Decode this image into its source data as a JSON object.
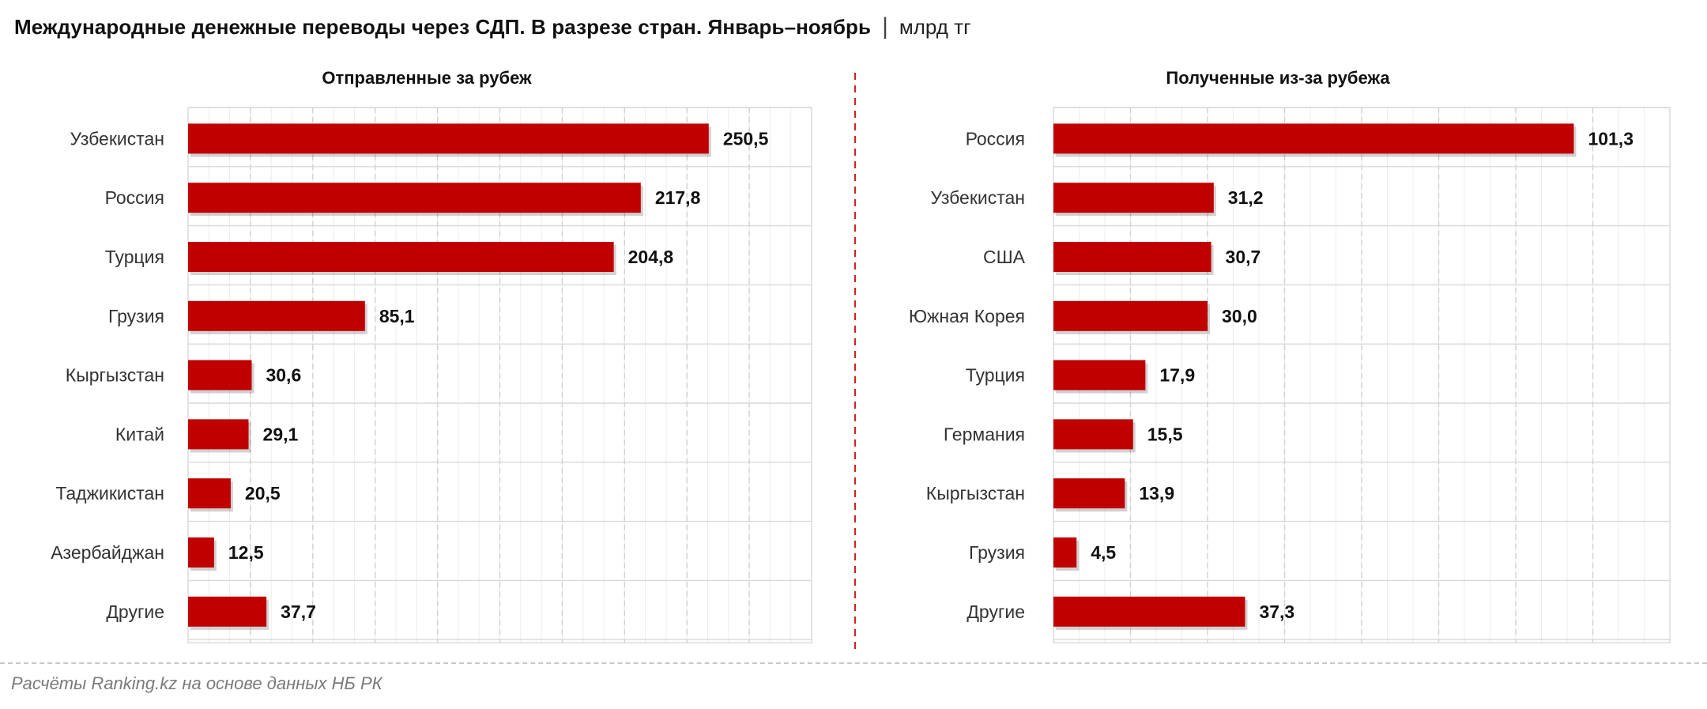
{
  "header": {
    "title": "Международные денежные переводы через СДП. В разрезе стран. Январь–ноябрь",
    "separator": "|",
    "unit": "млрд тг"
  },
  "colors": {
    "bar": "#c00000",
    "divider": "#d42020",
    "grid": "#d9d9d9",
    "text": "#111111",
    "source": "#7a7a7a"
  },
  "chart_data": [
    {
      "type": "bar",
      "orientation": "horizontal",
      "title": "Отправленные за рубеж",
      "categories": [
        "Узбекистан",
        "Россия",
        "Турция",
        "Грузия",
        "Кыргызстан",
        "Китай",
        "Таджикистан",
        "Азербайджан",
        "Другие"
      ],
      "values": [
        250.5,
        217.8,
        204.8,
        85.1,
        30.6,
        29.1,
        20.5,
        12.5,
        37.7
      ],
      "value_labels": [
        "250,5",
        "217,8",
        "204,8",
        "85,1",
        "30,6",
        "29,1",
        "20,5",
        "12,5",
        "37,7"
      ],
      "xlim": [
        0,
        300
      ],
      "grid": true
    },
    {
      "type": "bar",
      "orientation": "horizontal",
      "title": "Полученные из-за рубежа",
      "categories": [
        "Россия",
        "Узбекистан",
        "США",
        "Южная Корея",
        "Турция",
        "Германия",
        "Кыргызстан",
        "Грузия",
        "Другие"
      ],
      "values": [
        101.3,
        31.2,
        30.7,
        30.0,
        17.9,
        15.5,
        13.9,
        4.5,
        37.3
      ],
      "value_labels": [
        "101,3",
        "31,2",
        "30,7",
        "30,0",
        "17,9",
        "15,5",
        "13,9",
        "4,5",
        "37,3"
      ],
      "xlim": [
        0,
        120
      ],
      "grid": true
    }
  ],
  "footer": {
    "source": "Расчёты Ranking.kz на основе данных НБ РК"
  }
}
